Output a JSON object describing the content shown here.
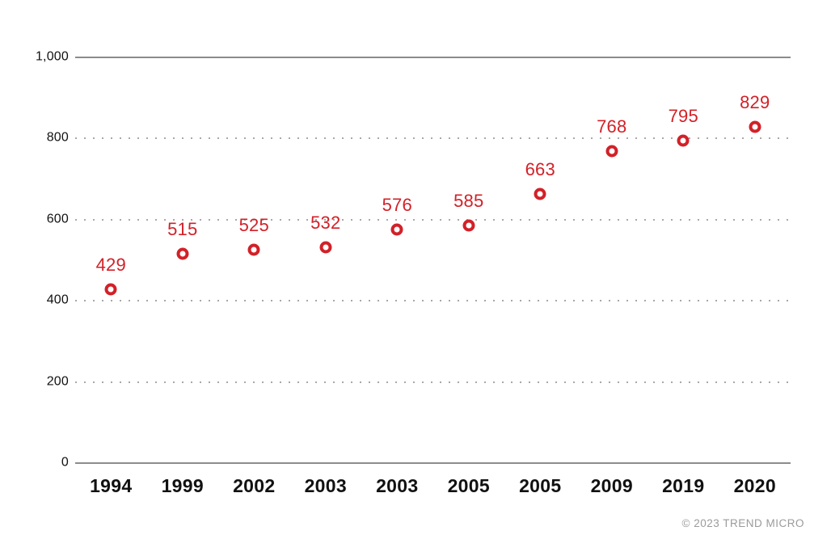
{
  "chart_data": {
    "type": "scatter",
    "categories": [
      "1994",
      "1999",
      "2002",
      "2003",
      "2003",
      "2005",
      "2005",
      "2009",
      "2019",
      "2020"
    ],
    "values": [
      429,
      515,
      525,
      532,
      576,
      585,
      663,
      768,
      795,
      829
    ],
    "title": "",
    "xlabel": "",
    "ylabel": "",
    "ylim": [
      0,
      1000
    ],
    "yticks": [
      0,
      200,
      400,
      600,
      800,
      1000
    ],
    "ytick_labels": [
      "0",
      "200",
      "400",
      "600",
      "800",
      "1,000"
    ],
    "solid_gridlines": [
      0,
      1000
    ],
    "dotted_gridlines": [
      200,
      400,
      600,
      800
    ],
    "grid": "horizontal-only",
    "legend": "none",
    "marker_style": "open-circle",
    "data_labels": "above-points",
    "colors": {
      "marker": "#d22128",
      "point_label": "#d22128",
      "solid_gridline": "#8c8c8c",
      "dotted_gridline": "#a8a8a8",
      "tick_text": "#111111",
      "watermark": "#9b9b9b"
    }
  },
  "footer": {
    "watermark": "© 2023 TREND MICRO"
  }
}
